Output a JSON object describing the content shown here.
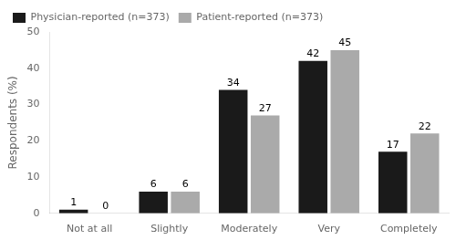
{
  "chart_data": {
    "type": "bar",
    "categories": [
      "Not at all",
      "Slightly",
      "Moderately",
      "Very",
      "Completely"
    ],
    "series": [
      {
        "name": "Physician-reported (n=373)",
        "color": "#1a1a1a",
        "values": [
          1,
          6,
          34,
          42,
          17
        ]
      },
      {
        "name": "Patient-reported (n=373)",
        "color": "#aaaaaa",
        "values": [
          0,
          6,
          27,
          45,
          22
        ]
      }
    ],
    "ylabel": "Respondents (%)",
    "ylim": [
      0,
      50
    ],
    "yticks": [
      0,
      10,
      20,
      30,
      40,
      50
    ],
    "data_labels": true,
    "legend": "upper left",
    "grid": false
  }
}
